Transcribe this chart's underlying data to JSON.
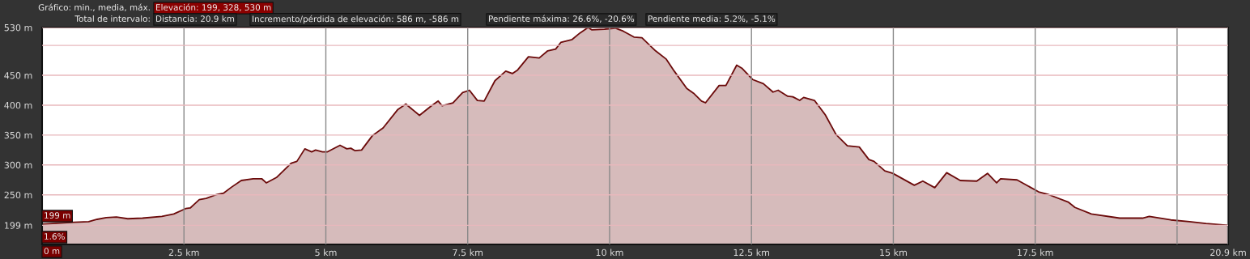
{
  "chart_data": {
    "type": "area",
    "annotations": [
      "Gráfico: min., media, máx.",
      "Elevación: 199, 328, 530 m",
      "Total de intervalo:",
      "Distancia: 20.9 km",
      "Incremento/pérdida de elevación: 586 m, -586 m",
      "Pendiente máxima: 26.6%, -20.6%",
      "Pendiente media: 5.2%, -5.1%",
      "199 m",
      "1.6%",
      "0 m"
    ],
    "series": [
      {
        "color": "#6b0a0a",
        "x": [
          0,
          0.56,
          0.82,
          0.97,
          1.13,
          1.31,
          1.51,
          1.77,
          2.11,
          2.32,
          2.53,
          2.61,
          2.77,
          2.89,
          3.06,
          3.2,
          3.34,
          3.51,
          3.72,
          3.87,
          3.95,
          4.13,
          4.39,
          4.49,
          4.63,
          4.75,
          4.82,
          4.94,
          5.03,
          5.25,
          5.37,
          5.44,
          5.51,
          5.63,
          5.82,
          6.01,
          6.27,
          6.41,
          6.46,
          6.65,
          6.86,
          6.98,
          7.05,
          7.24,
          7.41,
          7.53,
          7.67,
          7.79,
          7.98,
          8.17,
          8.29,
          8.38,
          8.57,
          8.76,
          8.91,
          9.05,
          9.14,
          9.34,
          9.48,
          9.62,
          9.69,
          9.91,
          10.1,
          10.24,
          10.43,
          10.57,
          10.81,
          11.0,
          11.14,
          11.36,
          11.48,
          11.62,
          11.69,
          11.93,
          12.05,
          12.24,
          12.33,
          12.52,
          12.71,
          12.88,
          12.97,
          13.14,
          13.23,
          13.35,
          13.42,
          13.61,
          13.8,
          13.99,
          14.19,
          14.4,
          14.57,
          14.66,
          14.85,
          14.99,
          15.37,
          15.52,
          15.73,
          15.94,
          16.18,
          16.47,
          16.66,
          16.82,
          16.89,
          17.18,
          17.56,
          17.75,
          18.08,
          18.2,
          18.49,
          18.99,
          19.39,
          19.51,
          19.89,
          20.22,
          20.51,
          20.9
        ],
        "values": [
          201,
          204,
          205,
          209,
          212,
          213,
          210,
          211,
          214,
          218,
          227,
          228,
          242,
          244,
          250,
          253,
          263,
          274,
          277,
          277,
          270,
          279,
          303,
          306,
          327,
          322,
          325,
          322,
          322,
          333,
          327,
          328,
          324,
          325,
          349,
          362,
          393,
          402,
          398,
          383,
          399,
          407,
          399,
          404,
          421,
          425,
          408,
          407,
          441,
          457,
          453,
          459,
          481,
          479,
          491,
          494,
          505,
          510,
          521,
          530,
          526,
          527,
          529,
          524,
          514,
          513,
          491,
          477,
          457,
          428,
          420,
          407,
          404,
          433,
          433,
          467,
          462,
          443,
          436,
          422,
          425,
          415,
          414,
          408,
          413,
          408,
          384,
          351,
          332,
          330,
          309,
          306,
          290,
          286,
          266,
          273,
          262,
          287,
          274,
          273,
          286,
          270,
          277,
          275,
          255,
          250,
          238,
          229,
          218,
          211,
          211,
          214,
          208,
          205,
          202,
          199
        ]
      }
    ],
    "xlim": [
      0,
      20.9
    ],
    "xticks": [
      {
        "value": 2.5,
        "label": "2.5 km"
      },
      {
        "value": 5,
        "label": "5 km"
      },
      {
        "value": 7.5,
        "label": "7.5 km"
      },
      {
        "value": 10,
        "label": "10 km"
      },
      {
        "value": 12.5,
        "label": "12.5 km"
      },
      {
        "value": 15,
        "label": "15 km"
      },
      {
        "value": 17.5,
        "label": "17.5 km"
      },
      {
        "value": 20,
        "label": null
      },
      {
        "value": 20.9,
        "label": "20.9 km"
      }
    ],
    "ylim": [
      167,
      530
    ],
    "yticks": [
      {
        "value": 199,
        "label": "199 m"
      },
      {
        "value": 250,
        "label": "250 m"
      },
      {
        "value": 300,
        "label": "300 m"
      },
      {
        "value": 350,
        "label": "350 m"
      },
      {
        "value": 400,
        "label": "400 m"
      },
      {
        "value": 450,
        "label": "450 m"
      },
      {
        "value": 500,
        "label": null
      },
      {
        "value": 530,
        "label": "530 m"
      }
    ],
    "grid": true
  }
}
